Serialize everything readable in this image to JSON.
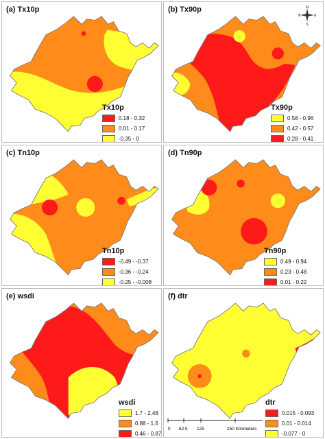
{
  "colors": {
    "low": "#ffff33",
    "mid": "#ff8c1a",
    "high": "#ff1a1a",
    "border": "#777777"
  },
  "panels": [
    {
      "id": "a",
      "title": "(a) Tx10p",
      "legend": {
        "title": "Tx10p",
        "items": [
          {
            "label": "0.18 - 0.32",
            "color": "#ff1a1a"
          },
          {
            "label": "0.01 - 0.17",
            "color": "#ff8c1a"
          },
          {
            "label": "-0.35 - 0",
            "color": "#ffff33"
          }
        ]
      }
    },
    {
      "id": "b",
      "title": "(b) Tx90p",
      "legend": {
        "title": "Tx90p",
        "items": [
          {
            "label": "0.58 - 0.96",
            "color": "#ffff33"
          },
          {
            "label": "0.42 - 0.57",
            "color": "#ff8c1a"
          },
          {
            "label": "0.28 - 0.41",
            "color": "#ff1a1a"
          }
        ]
      }
    },
    {
      "id": "c",
      "title": "(c) Tn10p",
      "legend": {
        "title": "Tn10p",
        "items": [
          {
            "label": "-0.49 - -0.37",
            "color": "#ff1a1a"
          },
          {
            "label": "-0.36 - -0.24",
            "color": "#ff8c1a"
          },
          {
            "label": "-0.25 - -0.008",
            "color": "#ffff33"
          }
        ]
      }
    },
    {
      "id": "d",
      "title": "(d) Tn90p",
      "legend": {
        "title": "Tn90p",
        "items": [
          {
            "label": "0.49 - 0.94",
            "color": "#ffff33"
          },
          {
            "label": "0.23 - 0.48",
            "color": "#ff8c1a"
          },
          {
            "label": "0.01 - 0.22",
            "color": "#ff1a1a"
          }
        ]
      }
    },
    {
      "id": "e",
      "title": "(e) wsdi",
      "legend": {
        "title": "wsdi",
        "items": [
          {
            "label": "1.7 - 2.48",
            "color": "#ffff33"
          },
          {
            "label": "0.88 - 1.6",
            "color": "#ff8c1a"
          },
          {
            "label": "0.46 - 0.87",
            "color": "#ff1a1a"
          }
        ]
      }
    },
    {
      "id": "f",
      "title": "(f) dtr",
      "legend": {
        "title": "dtr",
        "items": [
          {
            "label": "0.015 - 0.093",
            "color": "#ff1a1a"
          },
          {
            "label": "0.01 - 0.014",
            "color": "#ff8c1a"
          },
          {
            "label": "-0.077 - 0",
            "color": "#ffff33"
          }
        ]
      }
    }
  ],
  "north_arrow": {
    "n": "N",
    "s": "S",
    "e": "E",
    "w": "W"
  },
  "scalebar": {
    "ticks": [
      "0",
      "62.5",
      "125",
      "250 Kilometers"
    ]
  }
}
